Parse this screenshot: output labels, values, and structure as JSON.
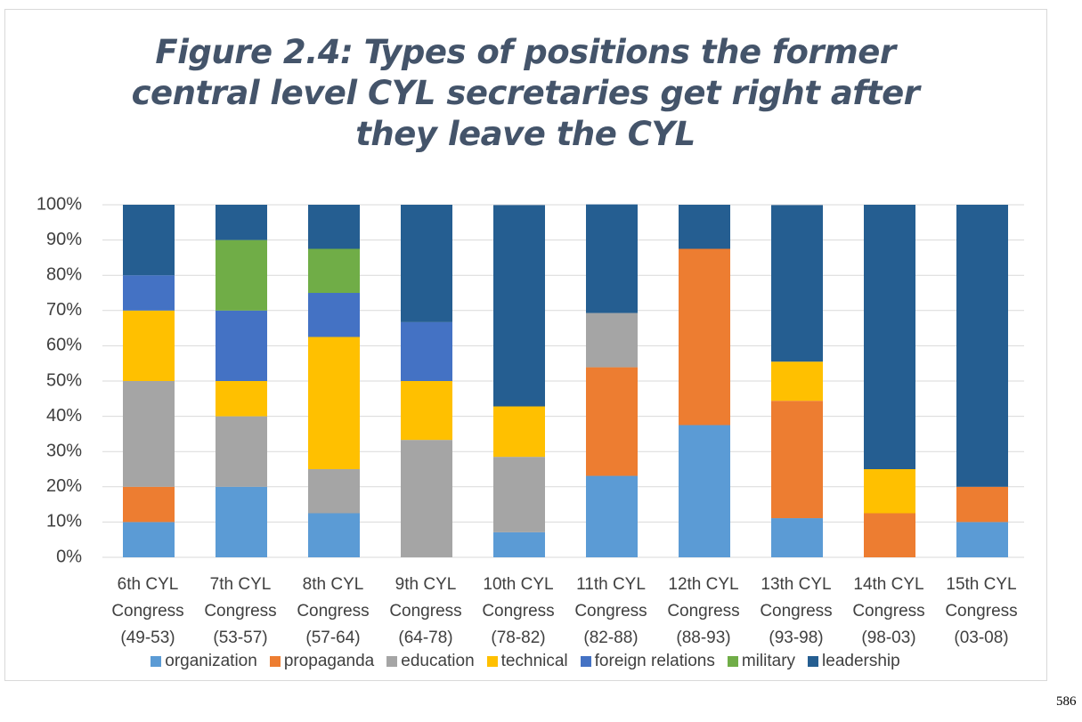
{
  "chart_data": {
    "type": "bar",
    "stacked": true,
    "title": "Figure 2.4: Types of positions the former central level CYL secretaries get right after they leave the CYL",
    "categories": [
      "6th CYL Congress (49-53)",
      "7th CYL Congress (53-57)",
      "8th CYL Congress (57-64)",
      "9th CYL Congress (64-78)",
      "10th CYL Congress (78-82)",
      "11th CYL Congress (82-88)",
      "12th CYL Congress (88-93)",
      "13th CYL Congress (93-98)",
      "14th CYL Congress (98-03)",
      "15th CYL Congress (03-08)"
    ],
    "series": [
      {
        "name": "organization",
        "color": "#5b9bd5",
        "values": [
          10,
          20,
          12.5,
          0,
          7.1,
          23.1,
          37.5,
          11.1,
          0,
          10
        ]
      },
      {
        "name": "propaganda",
        "color": "#ed7d31",
        "values": [
          10,
          0,
          0,
          0,
          0,
          30.8,
          50,
          33.3,
          12.5,
          10
        ]
      },
      {
        "name": "education",
        "color": "#a5a5a5",
        "values": [
          30,
          20,
          12.5,
          33.3,
          21.4,
          15.4,
          0,
          0,
          0,
          0
        ]
      },
      {
        "name": "technical",
        "color": "#ffc000",
        "values": [
          20,
          10,
          37.5,
          16.7,
          14.3,
          0,
          0,
          11.1,
          12.5,
          0
        ]
      },
      {
        "name": "foreign relations",
        "color": "#4472c4",
        "values": [
          10,
          20,
          12.5,
          16.7,
          0,
          0,
          0,
          0,
          0,
          0
        ]
      },
      {
        "name": "military",
        "color": "#70ad47",
        "values": [
          0,
          20,
          12.5,
          0,
          0,
          0,
          0,
          0,
          0,
          0
        ]
      },
      {
        "name": "leadership",
        "color": "#255e91",
        "values": [
          20,
          10,
          12.5,
          33.3,
          57.1,
          30.8,
          12.5,
          44.4,
          75,
          80
        ]
      }
    ],
    "ylim": [
      0,
      100
    ],
    "yticks": [
      {
        "value": 0,
        "label": "0%"
      },
      {
        "value": 10,
        "label": "10%"
      },
      {
        "value": 20,
        "label": "20%"
      },
      {
        "value": 30,
        "label": "30%"
      },
      {
        "value": 40,
        "label": "40%"
      },
      {
        "value": 50,
        "label": "50%"
      },
      {
        "value": 60,
        "label": "60%"
      },
      {
        "value": 70,
        "label": "70%"
      },
      {
        "value": 80,
        "label": "80%"
      },
      {
        "value": 90,
        "label": "90%"
      },
      {
        "value": 100,
        "label": "100%"
      }
    ],
    "grid": true,
    "legend": "bottom"
  },
  "page_number": "586"
}
